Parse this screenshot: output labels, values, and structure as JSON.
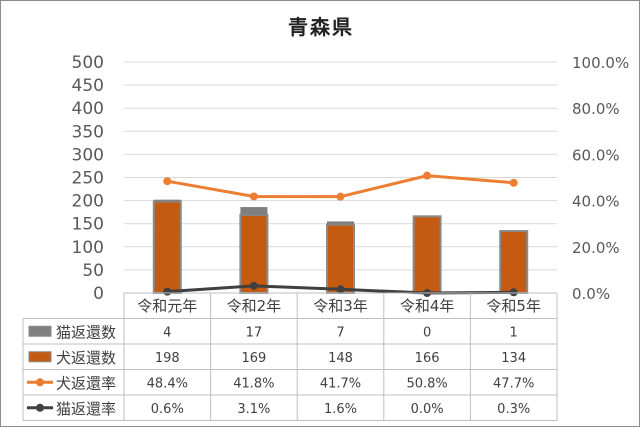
{
  "chart_data": {
    "type": "bar-line-table",
    "title": "青森県",
    "categories": [
      "令和元年",
      "令和2年",
      "令和3年",
      "令和4年",
      "令和5年"
    ],
    "y_left": {
      "ticks": [
        "0",
        "50",
        "100",
        "150",
        "200",
        "250",
        "300",
        "350",
        "400",
        "450",
        "500"
      ],
      "ylim": [
        0,
        500
      ]
    },
    "y_right": {
      "ticks": [
        "0.0%",
        "20.0%",
        "40.0%",
        "60.0%",
        "80.0%",
        "100.0%"
      ],
      "ylim": [
        0,
        100
      ]
    },
    "grid": true,
    "legend": "data-table",
    "series": [
      {
        "name": "猫返還数",
        "kind": "bar",
        "color": "#7f7f7f",
        "values": [
          4,
          17,
          7,
          0,
          1
        ],
        "labels": [
          "4",
          "17",
          "7",
          "0",
          "1"
        ]
      },
      {
        "name": "犬返還数",
        "kind": "bar",
        "color": "#c55a11",
        "values": [
          198,
          169,
          148,
          166,
          134
        ],
        "labels": [
          "198",
          "169",
          "148",
          "166",
          "134"
        ]
      },
      {
        "name": "犬返還率",
        "kind": "line",
        "axis": "right",
        "color": "#ed7d31",
        "values": [
          48.4,
          41.8,
          41.7,
          50.8,
          47.7
        ],
        "labels": [
          "48.4%",
          "41.8%",
          "41.7%",
          "50.8%",
          "47.7%"
        ]
      },
      {
        "name": "猫返還率",
        "kind": "line",
        "axis": "right",
        "color": "#404040",
        "values": [
          0.6,
          3.1,
          1.6,
          0.0,
          0.3
        ],
        "labels": [
          "0.6%",
          "3.1%",
          "1.6%",
          "0.0%",
          "0.3%"
        ]
      }
    ]
  }
}
